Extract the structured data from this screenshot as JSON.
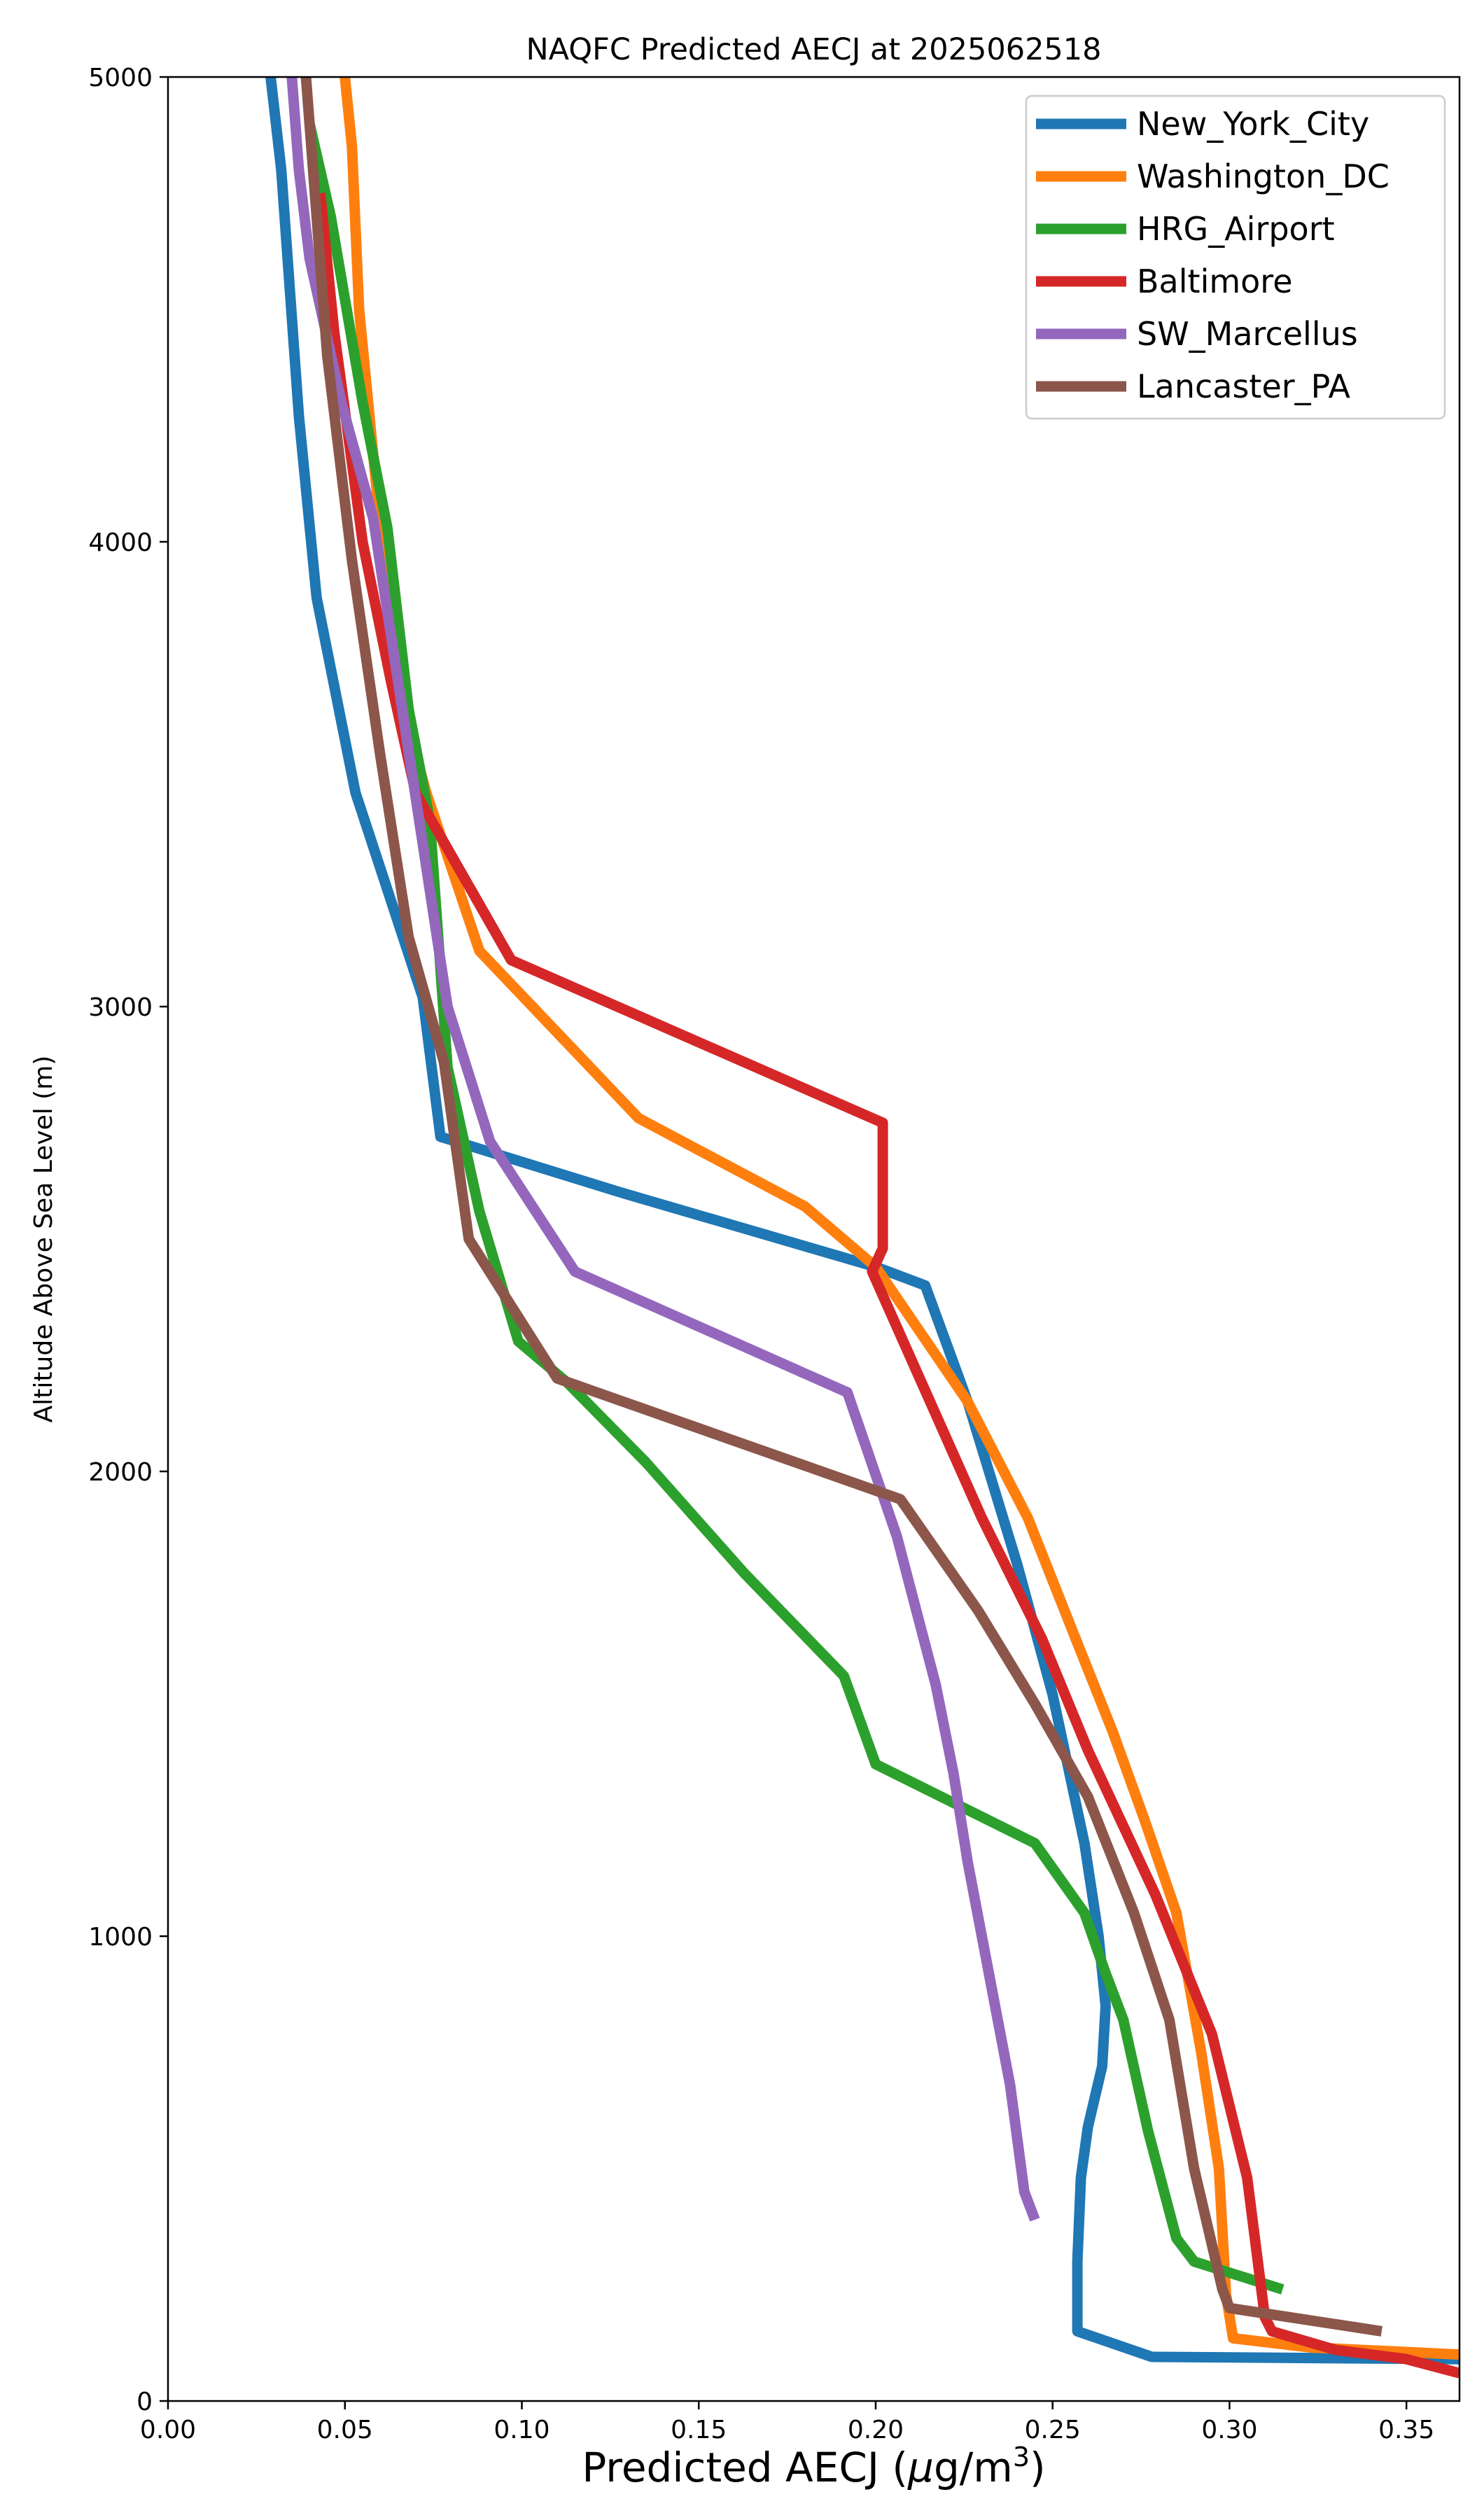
{
  "chart_data": {
    "type": "line",
    "title": "NAQFC Predicted AECJ at 2025062518",
    "xlabel_main": "Predicted AECJ (",
    "xlabel_mu": "μ",
    "xlabel_unit": "g/m",
    "xlabel_exp": "3",
    "xlabel_close": ")",
    "ylabel": "Altitude Above Sea Level (m)",
    "xlim": [
      0.0,
      0.365
    ],
    "ylim": [
      0,
      5000
    ],
    "xticks": [
      0.0,
      0.05,
      0.1,
      0.15,
      0.2,
      0.25,
      0.3,
      0.35
    ],
    "xtick_labels": [
      "0.00",
      "0.05",
      "0.10",
      "0.15",
      "0.20",
      "0.25",
      "0.30",
      "0.35"
    ],
    "yticks": [
      0,
      1000,
      2000,
      3000,
      4000,
      5000
    ],
    "ytick_labels": [
      "0",
      "1000",
      "2000",
      "3000",
      "4000",
      "5000"
    ],
    "grid": false,
    "legend_position": "top-right",
    "series": [
      {
        "name": "New_York_City",
        "color": "#1f77b4",
        "points": [
          [
            0.365,
            90
          ],
          [
            0.278,
            95
          ],
          [
            0.257,
            150
          ],
          [
            0.257,
            300
          ],
          [
            0.258,
            480
          ],
          [
            0.26,
            590
          ],
          [
            0.264,
            720
          ],
          [
            0.265,
            850
          ],
          [
            0.263,
            1000
          ],
          [
            0.259,
            1200
          ],
          [
            0.25,
            1520
          ],
          [
            0.24,
            1800
          ],
          [
            0.226,
            2150
          ],
          [
            0.214,
            2400
          ],
          [
            0.2,
            2440
          ],
          [
            0.128,
            2600
          ],
          [
            0.077,
            2720
          ],
          [
            0.072,
            3020
          ],
          [
            0.053,
            3460
          ],
          [
            0.042,
            3880
          ],
          [
            0.037,
            4270
          ],
          [
            0.032,
            4800
          ],
          [
            0.029,
            5000
          ]
        ]
      },
      {
        "name": "Washington_DC",
        "color": "#ff7f0e",
        "points": [
          [
            0.365,
            100
          ],
          [
            0.323,
            115
          ],
          [
            0.301,
            135
          ],
          [
            0.299,
            230
          ],
          [
            0.297,
            500
          ],
          [
            0.292,
            750
          ],
          [
            0.285,
            1050
          ],
          [
            0.276,
            1250
          ],
          [
            0.267,
            1440
          ],
          [
            0.256,
            1650
          ],
          [
            0.243,
            1900
          ],
          [
            0.226,
            2150
          ],
          [
            0.2,
            2440
          ],
          [
            0.18,
            2570
          ],
          [
            0.133,
            2760
          ],
          [
            0.088,
            3120
          ],
          [
            0.073,
            3460
          ],
          [
            0.068,
            3600
          ],
          [
            0.06,
            4030
          ],
          [
            0.054,
            4500
          ],
          [
            0.052,
            4850
          ],
          [
            0.05,
            5000
          ]
        ]
      },
      {
        "name": "HRG_Airport",
        "color": "#2ca02c",
        "points": [
          [
            0.315,
            240
          ],
          [
            0.29,
            300
          ],
          [
            0.285,
            350
          ],
          [
            0.277,
            580
          ],
          [
            0.27,
            820
          ],
          [
            0.265,
            920
          ],
          [
            0.259,
            1050
          ],
          [
            0.245,
            1200
          ],
          [
            0.2,
            1370
          ],
          [
            0.191,
            1560
          ],
          [
            0.163,
            1780
          ],
          [
            0.135,
            2020
          ],
          [
            0.113,
            2190
          ],
          [
            0.099,
            2280
          ],
          [
            0.088,
            2560
          ],
          [
            0.079,
            2870
          ],
          [
            0.074,
            3400
          ],
          [
            0.068,
            3640
          ],
          [
            0.062,
            4030
          ],
          [
            0.055,
            4300
          ],
          [
            0.046,
            4700
          ],
          [
            0.04,
            4900
          ]
        ]
      },
      {
        "name": "Baltimore",
        "color": "#d62728",
        "points": [
          [
            0.365,
            60
          ],
          [
            0.35,
            90
          ],
          [
            0.33,
            110
          ],
          [
            0.312,
            150
          ],
          [
            0.31,
            180
          ],
          [
            0.305,
            480
          ],
          [
            0.295,
            790
          ],
          [
            0.279,
            1090
          ],
          [
            0.26,
            1400
          ],
          [
            0.247,
            1640
          ],
          [
            0.23,
            1900
          ],
          [
            0.199,
            2430
          ],
          [
            0.202,
            2480
          ],
          [
            0.202,
            2750
          ],
          [
            0.097,
            3100
          ],
          [
            0.07,
            3460
          ],
          [
            0.063,
            3700
          ],
          [
            0.055,
            4000
          ],
          [
            0.047,
            4450
          ],
          [
            0.043,
            4750
          ]
        ]
      },
      {
        "name": "SW_Marcellus",
        "color": "#9467bd",
        "points": [
          [
            0.245,
            390
          ],
          [
            0.242,
            450
          ],
          [
            0.238,
            680
          ],
          [
            0.226,
            1160
          ],
          [
            0.222,
            1350
          ],
          [
            0.217,
            1540
          ],
          [
            0.206,
            1860
          ],
          [
            0.192,
            2170
          ],
          [
            0.115,
            2430
          ],
          [
            0.091,
            2710
          ],
          [
            0.079,
            3000
          ],
          [
            0.069,
            3500
          ],
          [
            0.058,
            4050
          ],
          [
            0.049,
            4300
          ],
          [
            0.04,
            4610
          ],
          [
            0.037,
            4800
          ],
          [
            0.035,
            5000
          ]
        ]
      },
      {
        "name": "Lancaster_PA",
        "color": "#8c564b",
        "points": [
          [
            0.343,
            150
          ],
          [
            0.3,
            200
          ],
          [
            0.298,
            240
          ],
          [
            0.29,
            500
          ],
          [
            0.283,
            820
          ],
          [
            0.273,
            1050
          ],
          [
            0.26,
            1300
          ],
          [
            0.245,
            1500
          ],
          [
            0.229,
            1700
          ],
          [
            0.207,
            1940
          ],
          [
            0.11,
            2200
          ],
          [
            0.085,
            2500
          ],
          [
            0.078,
            2880
          ],
          [
            0.068,
            3150
          ],
          [
            0.06,
            3540
          ],
          [
            0.052,
            3960
          ],
          [
            0.045,
            4400
          ],
          [
            0.042,
            4700
          ],
          [
            0.039,
            5000
          ]
        ]
      }
    ]
  }
}
